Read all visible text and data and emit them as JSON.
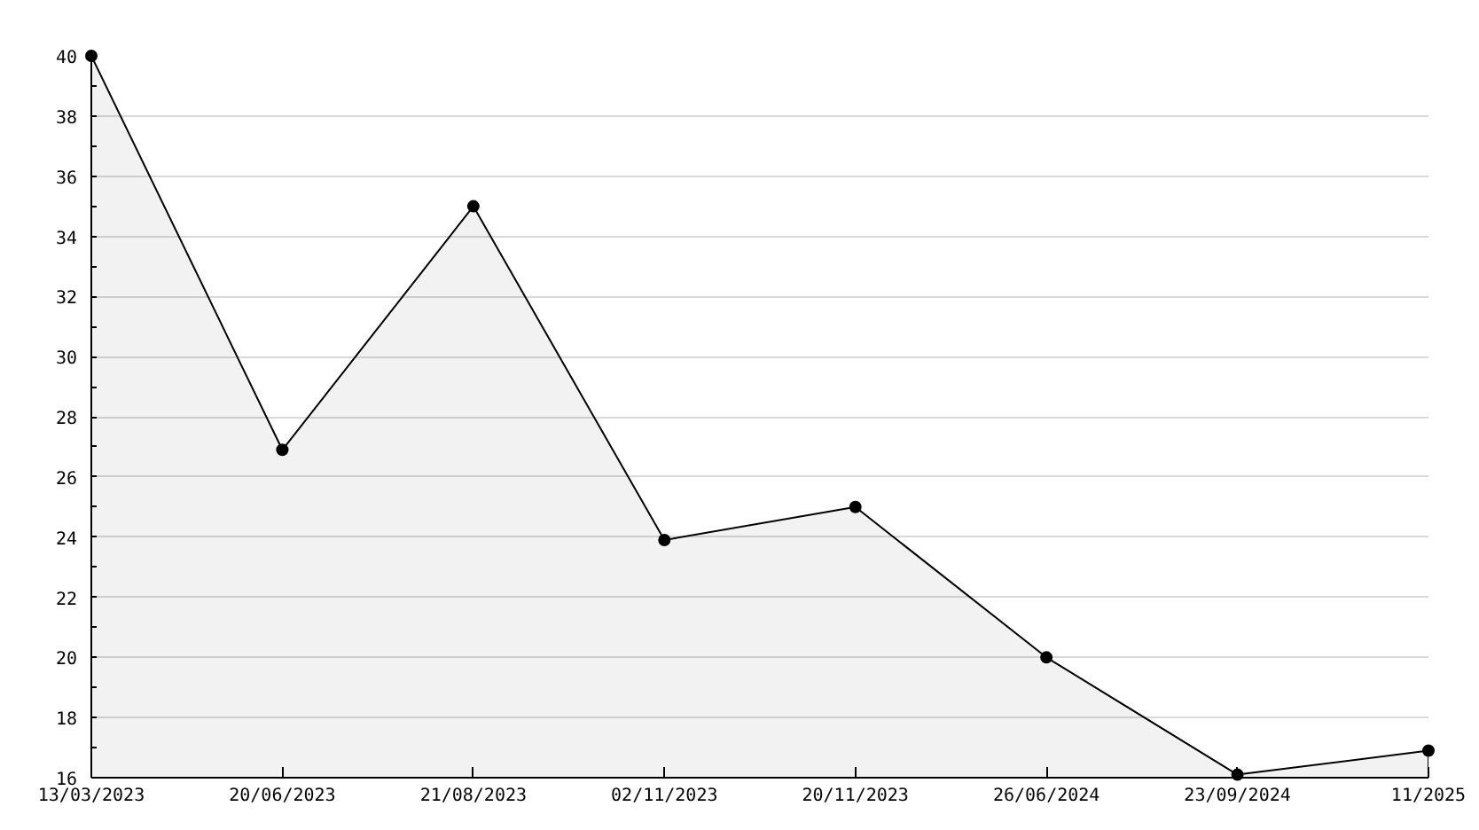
{
  "chart_data": {
    "type": "area",
    "categories": [
      "13/03/2023",
      "20/06/2023",
      "21/08/2023",
      "02/11/2023",
      "20/11/2023",
      "26/06/2024",
      "23/09/2024",
      "11/2025"
    ],
    "series": [
      {
        "color": "#000000",
        "values": [
          40,
          26.9,
          35,
          23.9,
          25,
          20,
          16.1,
          16.9
        ]
      }
    ],
    "ylim": [
      16,
      40
    ],
    "yticks": [
      16,
      {
        "value": 17,
        "label": null
      },
      18,
      {
        "value": 19,
        "label": null
      },
      20,
      {
        "value": 21,
        "label": null
      },
      22,
      {
        "value": 23,
        "label": null
      },
      24,
      {
        "value": 25,
        "label": null
      },
      26,
      {
        "value": 27,
        "label": null
      },
      28,
      {
        "value": 29,
        "label": null
      },
      30,
      {
        "value": 31,
        "label": null
      },
      32,
      {
        "value": 33,
        "label": null
      },
      34,
      {
        "value": 35,
        "label": null
      },
      36,
      {
        "value": 37,
        "label": null
      },
      38,
      {
        "value": 39,
        "label": null
      },
      40
    ],
    "grid": "y",
    "marker": "circle"
  }
}
